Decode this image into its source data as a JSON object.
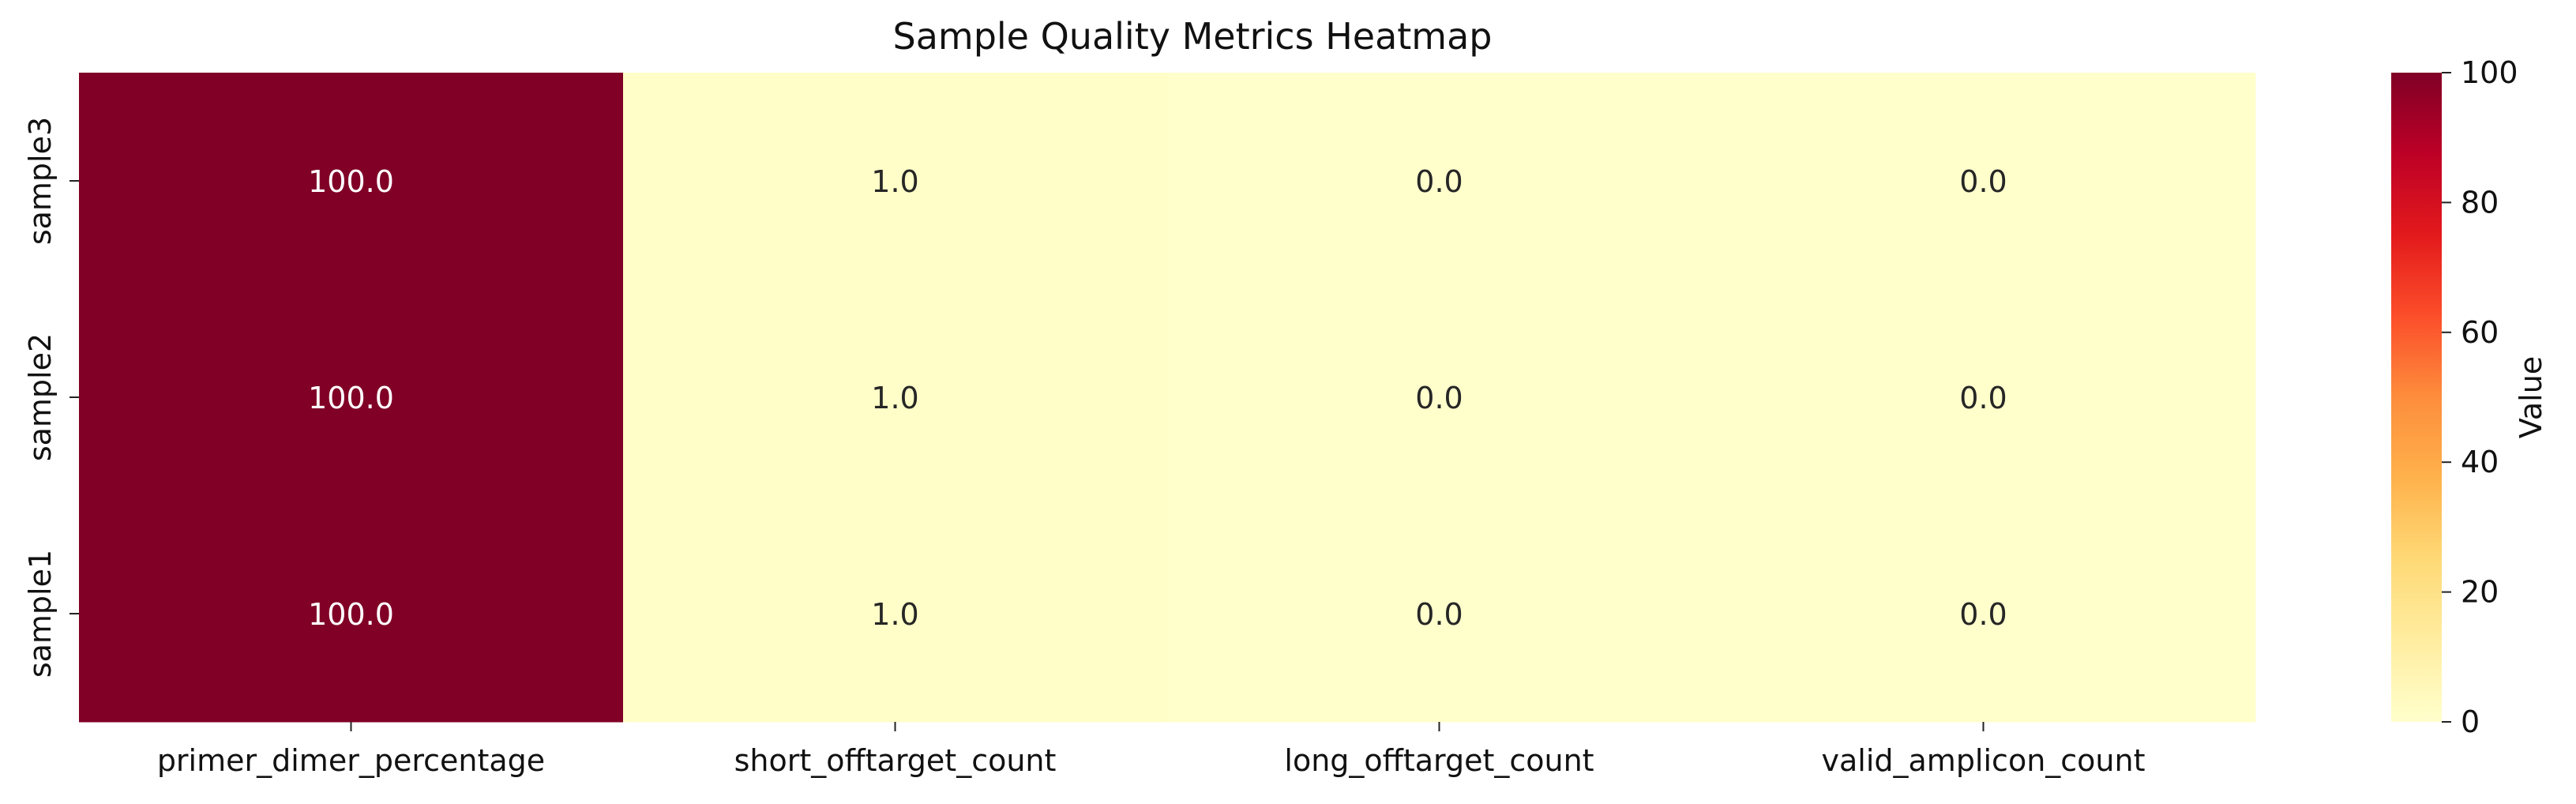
{
  "chart_data": {
    "type": "heatmap",
    "title": "Sample Quality Metrics Heatmap",
    "x_categories": [
      "primer_dimer_percentage",
      "short_offtarget_count",
      "long_offtarget_count",
      "valid_amplicon_count"
    ],
    "y_categories": [
      "sample3",
      "sample2",
      "sample1"
    ],
    "values": [
      [
        100.0,
        1.0,
        0.0,
        0.0
      ],
      [
        100.0,
        1.0,
        0.0,
        0.0
      ],
      [
        100.0,
        1.0,
        0.0,
        0.0
      ]
    ],
    "colorbar": {
      "label": "Value",
      "range": [
        0,
        100
      ],
      "ticks": [
        0,
        20,
        40,
        60,
        80,
        100
      ],
      "colormap": "YlOrRd",
      "stops": [
        "#ffffcc",
        "#ffeda0",
        "#fed976",
        "#feb24c",
        "#fd8d3c",
        "#fc4e2a",
        "#e31a1c",
        "#bd0026",
        "#800026"
      ]
    },
    "annotation_format": "one decimal"
  }
}
